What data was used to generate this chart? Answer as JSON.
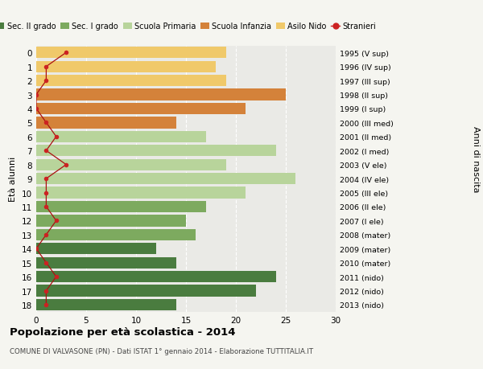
{
  "ages": [
    0,
    1,
    2,
    3,
    4,
    5,
    6,
    7,
    8,
    9,
    10,
    11,
    12,
    13,
    14,
    15,
    16,
    17,
    18
  ],
  "anni_nascita": [
    "2013 (nido)",
    "2012 (nido)",
    "2011 (nido)",
    "2010 (mater)",
    "2009 (mater)",
    "2008 (mater)",
    "2007 (I ele)",
    "2006 (II ele)",
    "2005 (III ele)",
    "2004 (IV ele)",
    "2003 (V ele)",
    "2002 (I med)",
    "2001 (II med)",
    "2000 (III med)",
    "1999 (I sup)",
    "1998 (II sup)",
    "1997 (III sup)",
    "1996 (IV sup)",
    "1995 (V sup)"
  ],
  "bar_values": [
    19,
    18,
    19,
    25,
    21,
    14,
    17,
    24,
    19,
    26,
    21,
    17,
    15,
    16,
    12,
    14,
    24,
    22,
    14
  ],
  "bar_colors": [
    "#f0c96a",
    "#f0c96a",
    "#f0c96a",
    "#d4823a",
    "#d4823a",
    "#d4823a",
    "#b8d49b",
    "#b8d49b",
    "#b8d49b",
    "#b8d49b",
    "#b8d49b",
    "#7daa5f",
    "#7daa5f",
    "#7daa5f",
    "#4a7c3f",
    "#4a7c3f",
    "#4a7c3f",
    "#4a7c3f",
    "#4a7c3f"
  ],
  "stranieri_values": [
    3,
    1,
    1,
    0,
    0,
    1,
    2,
    1,
    3,
    1,
    1,
    1,
    2,
    1,
    0,
    1,
    2,
    1,
    1
  ],
  "legend_labels": [
    "Sec. II grado",
    "Sec. I grado",
    "Scuola Primaria",
    "Scuola Infanzia",
    "Asilo Nido",
    "Stranieri"
  ],
  "legend_colors": [
    "#4a7c3f",
    "#7daa5f",
    "#b8d49b",
    "#d4823a",
    "#f0c96a",
    "#cc2222"
  ],
  "title_bold": "Popolazione per età scolastica - 2014",
  "subtitle": "COMUNE DI VALVASONE (PN) - Dati ISTAT 1° gennaio 2014 - Elaborazione TUTTITALIA.IT",
  "ylabel_left": "Età alunni",
  "ylabel_right": "Anni di nascita",
  "xlim": [
    0,
    30
  ],
  "background_color": "#f5f5f0",
  "bar_background": "#eaeae6"
}
